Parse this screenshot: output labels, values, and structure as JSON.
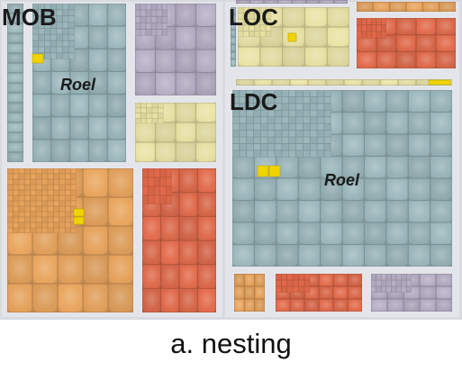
{
  "figure": {
    "labels": {
      "mob": "MOB",
      "loc": "LOC",
      "ldc": "LDC",
      "roel_mob": "Roel",
      "roel_ldc": "Roel"
    },
    "caption": "a. nesting"
  },
  "colors": {
    "background": "#dcdde3",
    "blue_gray": "#9ab6bb",
    "lavender": "#b5adc4",
    "cream": "#e8e1a4",
    "orange": "#e7a35c",
    "red_orange": "#e0694a",
    "highlight": "#f0d400"
  }
}
